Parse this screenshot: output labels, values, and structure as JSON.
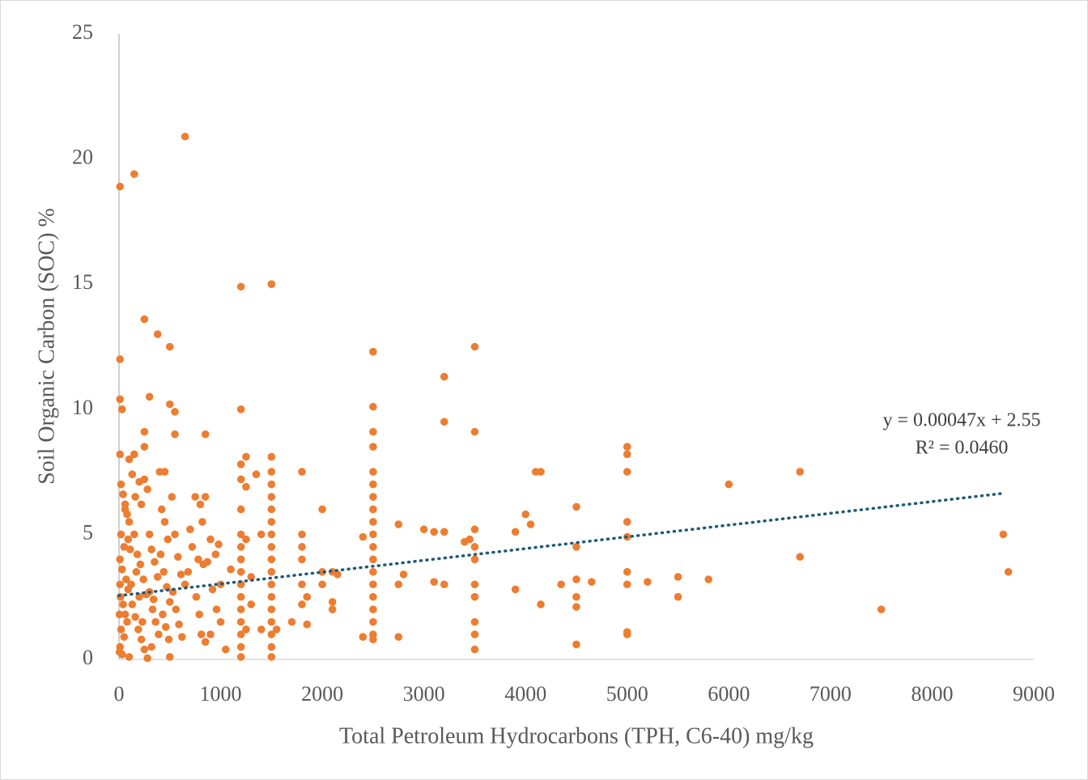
{
  "chart_data": {
    "type": "scatter",
    "xlabel": "Total Petroleum Hydrocarbons (TPH, C6-40) mg/kg",
    "ylabel": "Soil Organic Carbon (SOC) %",
    "xlim": [
      0,
      9000
    ],
    "xticks": [
      0,
      1000,
      2000,
      3000,
      4000,
      5000,
      6000,
      7000,
      8000,
      9000
    ],
    "ylim": [
      0,
      25
    ],
    "yticks": [
      0,
      5,
      10,
      15,
      20,
      25
    ],
    "grid": false,
    "color": "#ed7d31",
    "x": [
      10,
      150,
      650,
      10,
      10,
      250,
      380,
      500,
      300,
      500,
      550,
      30,
      1200,
      1500,
      1200,
      250,
      550,
      850,
      250,
      10,
      100,
      150,
      1250,
      1500,
      1200,
      1350,
      1800,
      450,
      400,
      2000,
      2500,
      2500,
      2500,
      2500,
      2500,
      2500,
      2500,
      2500,
      2500,
      2500,
      2500,
      2500,
      2500,
      2500,
      2500,
      2500,
      2500,
      2500,
      2500,
      3200,
      3200,
      3500,
      3500,
      3500,
      3500,
      3500,
      3500,
      3500,
      3500,
      3500,
      3500,
      3450,
      3400,
      3200,
      3100,
      3000,
      3100,
      3200,
      2750,
      2800,
      2750,
      2750,
      2400,
      2400,
      2100,
      2100,
      2100,
      2150,
      2000,
      2000,
      1850,
      1850,
      1800,
      1800,
      1800,
      1800,
      1800,
      1700,
      1550,
      1400,
      1400,
      1500,
      1500,
      1500,
      1500,
      1500,
      1500,
      1500,
      1500,
      1500,
      1500,
      1500,
      1500,
      1500,
      1500,
      1500,
      1500,
      1200,
      1200,
      1200,
      1200,
      1200,
      1200,
      1200,
      1200,
      1200,
      1200,
      1200,
      1200,
      1200,
      1250,
      1250,
      1250,
      1300,
      1300,
      3900,
      3900,
      4000,
      4050,
      4100,
      4150,
      4150,
      4350,
      4500,
      4500,
      4500,
      4500,
      4500,
      4500,
      4650,
      5000,
      5000,
      5000,
      5000,
      5000,
      5000,
      5000,
      5000,
      5000,
      5200,
      5500,
      5500,
      5800,
      6000,
      6700,
      6700,
      7500,
      8700,
      8750,
      20,
      40,
      60,
      80,
      100,
      20,
      50,
      10,
      30,
      70,
      90,
      15,
      40,
      60,
      80,
      20,
      50,
      10,
      30,
      100,
      130,
      160,
      200,
      220,
      250,
      280,
      150,
      180,
      210,
      240,
      270,
      130,
      160,
      190,
      220,
      250,
      280,
      120,
      170,
      300,
      320,
      350,
      380,
      300,
      330,
      360,
      390,
      320,
      420,
      450,
      480,
      410,
      440,
      470,
      500,
      430,
      460,
      490,
      500,
      520,
      550,
      580,
      610,
      530,
      560,
      590,
      620,
      650,
      680,
      700,
      720,
      750,
      780,
      800,
      820,
      850,
      830,
      760,
      790,
      810,
      850,
      870,
      900,
      950,
      980,
      1000,
      960,
      1000,
      1050,
      1100,
      900,
      920,
      10,
      5,
      5,
      340,
      200,
      230,
      110,
      60,
      90
    ],
    "values": [
      18.9,
      19.4,
      20.9,
      12,
      10.4,
      13.6,
      13,
      12.5,
      10.5,
      10.2,
      9.9,
      10,
      14.9,
      15,
      10,
      9.1,
      9,
      9,
      8.5,
      8.2,
      8,
      8.2,
      8.1,
      8.1,
      7.8,
      7.4,
      7.5,
      7.5,
      7.5,
      6,
      12.3,
      10.1,
      9.1,
      8.5,
      7.5,
      7,
      6.5,
      6,
      5.5,
      5,
      4.5,
      4,
      3.5,
      3,
      2.5,
      2,
      1.5,
      1,
      0.8,
      11.3,
      9.5,
      12.5,
      9.1,
      5.2,
      4.5,
      4,
      3,
      2.5,
      1.5,
      1,
      0.4,
      4.8,
      4.7,
      5.1,
      5.1,
      5.2,
      3.1,
      3,
      5.4,
      3.4,
      3,
      0.9,
      4.9,
      0.9,
      3.5,
      2.3,
      2,
      3.4,
      3.5,
      3,
      2.5,
      1.4,
      5,
      4.5,
      4,
      3,
      2.2,
      1.5,
      1.2,
      5,
      1.2,
      7.5,
      7,
      6.5,
      6,
      5.5,
      5,
      4.5,
      4,
      3.5,
      3,
      2.5,
      2,
      1.5,
      1,
      0.5,
      0.1,
      7.2,
      6,
      5,
      4.5,
      4,
      3.5,
      3,
      2.5,
      2,
      1.5,
      1,
      0.5,
      0.1,
      6.9,
      4.8,
      1.2,
      3.3,
      2.2,
      5.1,
      2.8,
      5.8,
      5.4,
      7.5,
      7.5,
      2.2,
      3,
      6.1,
      4.5,
      3.2,
      2.5,
      2.1,
      0.6,
      3.1,
      8.5,
      8.2,
      7.5,
      5.5,
      4.9,
      3.5,
      3,
      1.1,
      1,
      3.1,
      3.3,
      2.5,
      3.2,
      7,
      7.5,
      4.1,
      2,
      5,
      3.5,
      7,
      6.6,
      6.2,
      5.8,
      5.5,
      5,
      4.5,
      4,
      3.6,
      3.2,
      2.8,
      2.5,
      2.2,
      1.8,
      1.5,
      1.2,
      0.9,
      0.5,
      0.2,
      0.1,
      7.4,
      6.5,
      7.1,
      6.2,
      7.2,
      6.8,
      5,
      4.2,
      3.8,
      3.2,
      2.6,
      2.2,
      1.7,
      1.2,
      0.8,
      0.4,
      0.05,
      3,
      3.5,
      5,
      4.4,
      3.9,
      3.3,
      2.7,
      2,
      1.5,
      1,
      0.5,
      6,
      5.5,
      4.8,
      4.2,
      3.5,
      2.9,
      2.3,
      1.8,
      1.3,
      0.8,
      0.1,
      6.5,
      5,
      4.1,
      3.4,
      2.7,
      2,
      1.4,
      0.9,
      3,
      3.5,
      5.2,
      4.5,
      6.5,
      4,
      6.2,
      5.5,
      6.5,
      3.8,
      2.5,
      1.8,
      1,
      0.7,
      3.9,
      4.8,
      4.2,
      4.6,
      3,
      2,
      1.5,
      0.4,
      3.6,
      1,
      2.8,
      3,
      1.8,
      0.3,
      2.4,
      2.5,
      1.5,
      4.4,
      6,
      4.8
    ],
    "trendline": {
      "x": [
        0,
        8700
      ],
      "values": [
        2.55,
        6.64
      ],
      "color": "#1f5a78"
    },
    "annotations": [
      "y = 0.00047x + 2.55",
      "R² = 0.0460"
    ]
  }
}
